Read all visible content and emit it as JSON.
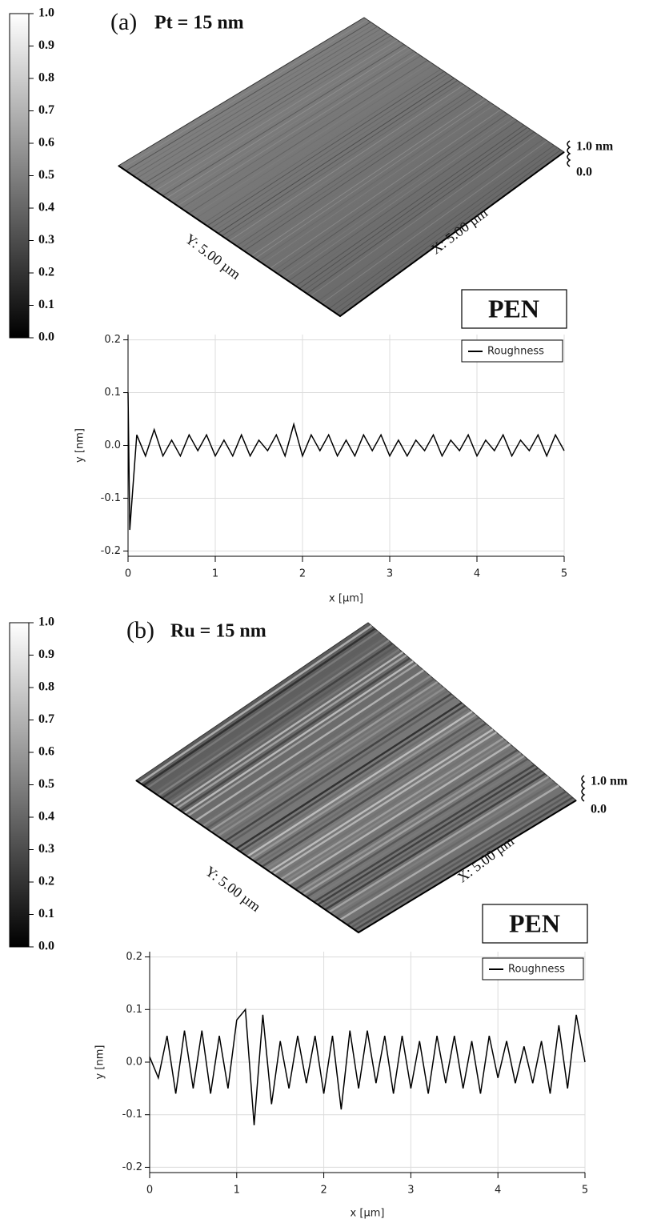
{
  "images": [
    {
      "label": "(a)",
      "title": "Pt = 15 nm",
      "z_top": "1.0 nm",
      "z_bottom": "0.0",
      "y_side": "Y: 5.00 µm",
      "x_side": "X: 5.00 µm",
      "substrate": "PEN",
      "colorbar": {
        "range": [
          0,
          1
        ],
        "ticks": [
          {
            "value": 0,
            "label": "0.0"
          },
          0.1,
          0.2,
          0.3,
          0.4,
          0.5,
          0.6,
          0.7,
          0.8,
          0.9,
          {
            "value": 1,
            "label": "1.0"
          }
        ]
      }
    },
    {
      "label": "(b)",
      "title": "Ru = 15 nm",
      "z_top": "1.0 nm",
      "z_bottom": "0.0",
      "y_side": "Y: 5.00 µm",
      "x_side": "X: 5.00 µm",
      "substrate": "PEN",
      "colorbar": {
        "range": [
          0,
          1
        ],
        "ticks": [
          {
            "value": 0,
            "label": "0.0"
          },
          0.1,
          0.2,
          0.3,
          0.4,
          0.5,
          0.6,
          0.7,
          0.8,
          0.9,
          {
            "value": 1,
            "label": "1.0"
          }
        ]
      }
    }
  ],
  "chart_data": [
    {
      "type": "line",
      "x_label": "x [µm]",
      "y_label": "y [nm]",
      "grid": true,
      "legend": "upper right",
      "xlim": [
        0,
        5
      ],
      "xticks": [
        0,
        1,
        2,
        3,
        4,
        5
      ],
      "ylim": [
        -0.21,
        0.21
      ],
      "yticks": [
        -0.2,
        -0.1,
        {
          "value": 0,
          "label": "0.0"
        },
        0.1,
        0.2
      ],
      "x": [
        0,
        0.02,
        0.1,
        0.2,
        0.3,
        0.4,
        0.5,
        0.6,
        0.7,
        0.8,
        0.9,
        1.0,
        1.1,
        1.2,
        1.3,
        1.4,
        1.5,
        1.6,
        1.7,
        1.8,
        1.9,
        2.0,
        2.1,
        2.2,
        2.3,
        2.4,
        2.5,
        2.6,
        2.7,
        2.8,
        2.9,
        3.0,
        3.1,
        3.2,
        3.3,
        3.4,
        3.5,
        3.6,
        3.7,
        3.8,
        3.9,
        4.0,
        4.1,
        4.2,
        4.3,
        4.4,
        4.5,
        4.6,
        4.7,
        4.8,
        4.9,
        5.0
      ],
      "series": [
        {
          "name": "Roughness",
          "color": "#000000",
          "values": [
            0.1,
            -0.16,
            0.02,
            -0.02,
            0.03,
            -0.02,
            0.01,
            -0.02,
            0.02,
            -0.01,
            0.02,
            -0.02,
            0.01,
            -0.02,
            0.02,
            -0.02,
            0.01,
            -0.01,
            0.02,
            -0.02,
            0.04,
            -0.02,
            0.02,
            -0.01,
            0.02,
            -0.02,
            0.01,
            -0.02,
            0.02,
            -0.01,
            0.02,
            -0.02,
            0.01,
            -0.02,
            0.01,
            -0.01,
            0.02,
            -0.02,
            0.01,
            -0.01,
            0.02,
            -0.02,
            0.01,
            -0.01,
            0.02,
            -0.02,
            0.01,
            -0.01,
            0.02,
            -0.02,
            0.02,
            -0.01
          ]
        }
      ]
    },
    {
      "type": "line",
      "x_label": "x [µm]",
      "y_label": "y [nm]",
      "grid": true,
      "legend": "upper right",
      "xlim": [
        0,
        5
      ],
      "xticks": [
        0,
        1,
        2,
        3,
        4,
        5
      ],
      "ylim": [
        -0.21,
        0.21
      ],
      "yticks": [
        -0.2,
        -0.1,
        {
          "value": 0,
          "label": "0.0"
        },
        0.1,
        0.2
      ],
      "x": [
        0,
        0.1,
        0.2,
        0.3,
        0.4,
        0.5,
        0.6,
        0.7,
        0.8,
        0.9,
        1.0,
        1.1,
        1.2,
        1.3,
        1.4,
        1.5,
        1.6,
        1.7,
        1.8,
        1.9,
        2.0,
        2.1,
        2.2,
        2.3,
        2.4,
        2.5,
        2.6,
        2.7,
        2.8,
        2.9,
        3.0,
        3.1,
        3.2,
        3.3,
        3.4,
        3.5,
        3.6,
        3.7,
        3.8,
        3.9,
        4.0,
        4.1,
        4.2,
        4.3,
        4.4,
        4.5,
        4.6,
        4.7,
        4.8,
        4.9,
        5.0
      ],
      "series": [
        {
          "name": "Roughness",
          "color": "#000000",
          "values": [
            0.01,
            -0.03,
            0.05,
            -0.06,
            0.06,
            -0.05,
            0.06,
            -0.06,
            0.05,
            -0.05,
            0.08,
            0.1,
            -0.12,
            0.09,
            -0.08,
            0.04,
            -0.05,
            0.05,
            -0.04,
            0.05,
            -0.06,
            0.05,
            -0.09,
            0.06,
            -0.05,
            0.06,
            -0.04,
            0.05,
            -0.06,
            0.05,
            -0.05,
            0.04,
            -0.06,
            0.05,
            -0.04,
            0.05,
            -0.05,
            0.04,
            -0.06,
            0.05,
            -0.03,
            0.04,
            -0.04,
            0.03,
            -0.04,
            0.04,
            -0.06,
            0.07,
            -0.05,
            0.09,
            0.0
          ]
        }
      ]
    }
  ]
}
